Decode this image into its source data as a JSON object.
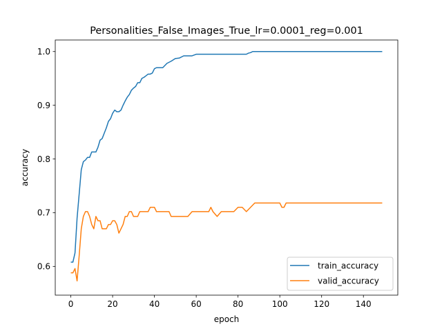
{
  "chart_data": {
    "type": "line",
    "title": "Personalities_False_Images_True_lr=0.0001_reg=0.001",
    "xlabel": "epoch",
    "ylabel": "accuracy",
    "xlim": [
      -7.45,
      156.45
    ],
    "ylim": [
      0.5465,
      1.0215
    ],
    "xticks": [
      0,
      20,
      40,
      60,
      80,
      100,
      120,
      140
    ],
    "yticks": [
      0.6,
      0.7,
      0.8,
      0.9,
      1.0
    ],
    "ytick_labels": [
      "0.6",
      "0.7",
      "0.8",
      "0.9",
      "1.0"
    ],
    "grid": false,
    "legend_position": "lower-right",
    "series": [
      {
        "name": "train_accuracy",
        "color": "#1f77b4",
        "x": [
          0,
          1,
          2,
          3,
          4,
          5,
          6,
          7,
          8,
          9,
          10,
          11,
          12,
          13,
          14,
          15,
          16,
          17,
          18,
          19,
          20,
          21,
          22,
          23,
          24,
          25,
          26,
          27,
          28,
          29,
          30,
          31,
          32,
          33,
          34,
          35,
          36,
          37,
          38,
          39,
          40,
          41,
          42,
          44,
          46,
          48,
          50,
          52,
          54,
          56,
          58,
          60,
          62,
          66,
          70,
          75,
          80,
          84,
          85,
          86,
          87,
          90,
          100,
          110,
          120,
          130,
          140,
          149
        ],
        "y": [
          0.608,
          0.608,
          0.625,
          0.69,
          0.735,
          0.78,
          0.795,
          0.798,
          0.803,
          0.803,
          0.813,
          0.813,
          0.813,
          0.822,
          0.835,
          0.838,
          0.848,
          0.858,
          0.87,
          0.875,
          0.885,
          0.891,
          0.888,
          0.888,
          0.891,
          0.9,
          0.908,
          0.915,
          0.92,
          0.928,
          0.932,
          0.935,
          0.942,
          0.942,
          0.95,
          0.952,
          0.955,
          0.958,
          0.958,
          0.96,
          0.968,
          0.97,
          0.97,
          0.97,
          0.978,
          0.982,
          0.987,
          0.988,
          0.992,
          0.992,
          0.992,
          0.995,
          0.995,
          0.995,
          0.995,
          0.995,
          0.995,
          0.995,
          0.997,
          0.998,
          1.0,
          1.0,
          1.0,
          1.0,
          1.0,
          1.0,
          1.0,
          1.0
        ]
      },
      {
        "name": "valid_accuracy",
        "color": "#ff7f0e",
        "x": [
          0,
          1,
          2,
          3,
          4,
          5,
          6,
          7,
          8,
          9,
          10,
          11,
          12,
          13,
          14,
          15,
          16,
          17,
          18,
          19,
          20,
          21,
          22,
          23,
          24,
          25,
          26,
          27,
          28,
          29,
          30,
          31,
          32,
          33,
          34,
          35,
          36,
          37,
          38,
          39,
          40,
          41,
          42,
          43,
          44,
          45,
          46,
          47,
          48,
          49,
          50,
          52,
          54,
          56,
          58,
          60,
          62,
          64,
          65,
          66,
          67,
          68,
          70,
          72,
          74,
          76,
          78,
          80,
          82,
          84,
          86,
          88,
          90,
          95,
          100,
          101,
          102,
          103,
          104,
          110,
          120,
          130,
          140,
          149
        ],
        "y": [
          0.588,
          0.588,
          0.596,
          0.573,
          0.62,
          0.67,
          0.693,
          0.702,
          0.702,
          0.693,
          0.678,
          0.67,
          0.693,
          0.685,
          0.685,
          0.67,
          0.67,
          0.67,
          0.678,
          0.678,
          0.685,
          0.685,
          0.678,
          0.662,
          0.67,
          0.678,
          0.693,
          0.693,
          0.702,
          0.702,
          0.693,
          0.693,
          0.693,
          0.702,
          0.702,
          0.702,
          0.702,
          0.702,
          0.71,
          0.71,
          0.71,
          0.702,
          0.702,
          0.702,
          0.702,
          0.702,
          0.702,
          0.702,
          0.693,
          0.693,
          0.693,
          0.693,
          0.693,
          0.693,
          0.702,
          0.702,
          0.702,
          0.702,
          0.702,
          0.702,
          0.71,
          0.702,
          0.693,
          0.702,
          0.702,
          0.702,
          0.702,
          0.71,
          0.71,
          0.702,
          0.71,
          0.718,
          0.718,
          0.718,
          0.718,
          0.71,
          0.71,
          0.718,
          0.718,
          0.718,
          0.718,
          0.718,
          0.718,
          0.718
        ]
      }
    ]
  }
}
